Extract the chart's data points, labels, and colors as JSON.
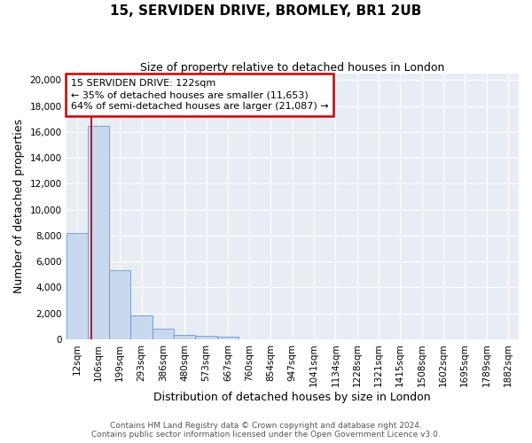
{
  "title": "15, SERVIDEN DRIVE, BROMLEY, BR1 2UB",
  "subtitle": "Size of property relative to detached houses in London",
  "xlabel": "Distribution of detached houses by size in London",
  "ylabel": "Number of detached properties",
  "footnote1": "Contains HM Land Registry data © Crown copyright and database right 2024.",
  "footnote2": "Contains public sector information licensed under the Open Government Licence v3.0.",
  "bar_labels": [
    "12sqm",
    "106sqm",
    "199sqm",
    "293sqm",
    "386sqm",
    "480sqm",
    "573sqm",
    "667sqm",
    "760sqm",
    "854sqm",
    "947sqm",
    "1041sqm",
    "1134sqm",
    "1228sqm",
    "1321sqm",
    "1415sqm",
    "1508sqm",
    "1602sqm",
    "1695sqm",
    "1789sqm",
    "1882sqm"
  ],
  "bar_values": [
    8200,
    16500,
    5300,
    1820,
    800,
    350,
    260,
    210,
    0,
    0,
    0,
    0,
    0,
    0,
    0,
    0,
    0,
    0,
    0,
    0,
    0
  ],
  "bar_color": "#c8d8ef",
  "bar_edge_color": "#6699cc",
  "annotation_line1": "15 SERVIDEN DRIVE: 122sqm",
  "annotation_line2": "← 35% of detached houses are smaller (11,653)",
  "annotation_line3": "64% of semi-detached houses are larger (21,087) →",
  "annotation_box_color": "#cc0000",
  "vertical_line_color": "#cc0000",
  "ylim": [
    0,
    20500
  ],
  "yticks": [
    0,
    2000,
    4000,
    6000,
    8000,
    10000,
    12000,
    14000,
    16000,
    18000,
    20000
  ],
  "figure_bg": "#ffffff",
  "axes_bg": "#e8edf5",
  "grid_color": "#ffffff",
  "title_fontsize": 11,
  "subtitle_fontsize": 9,
  "axis_label_fontsize": 9,
  "tick_fontsize": 7.5,
  "annot_fontsize": 8,
  "footnote_fontsize": 6.5
}
